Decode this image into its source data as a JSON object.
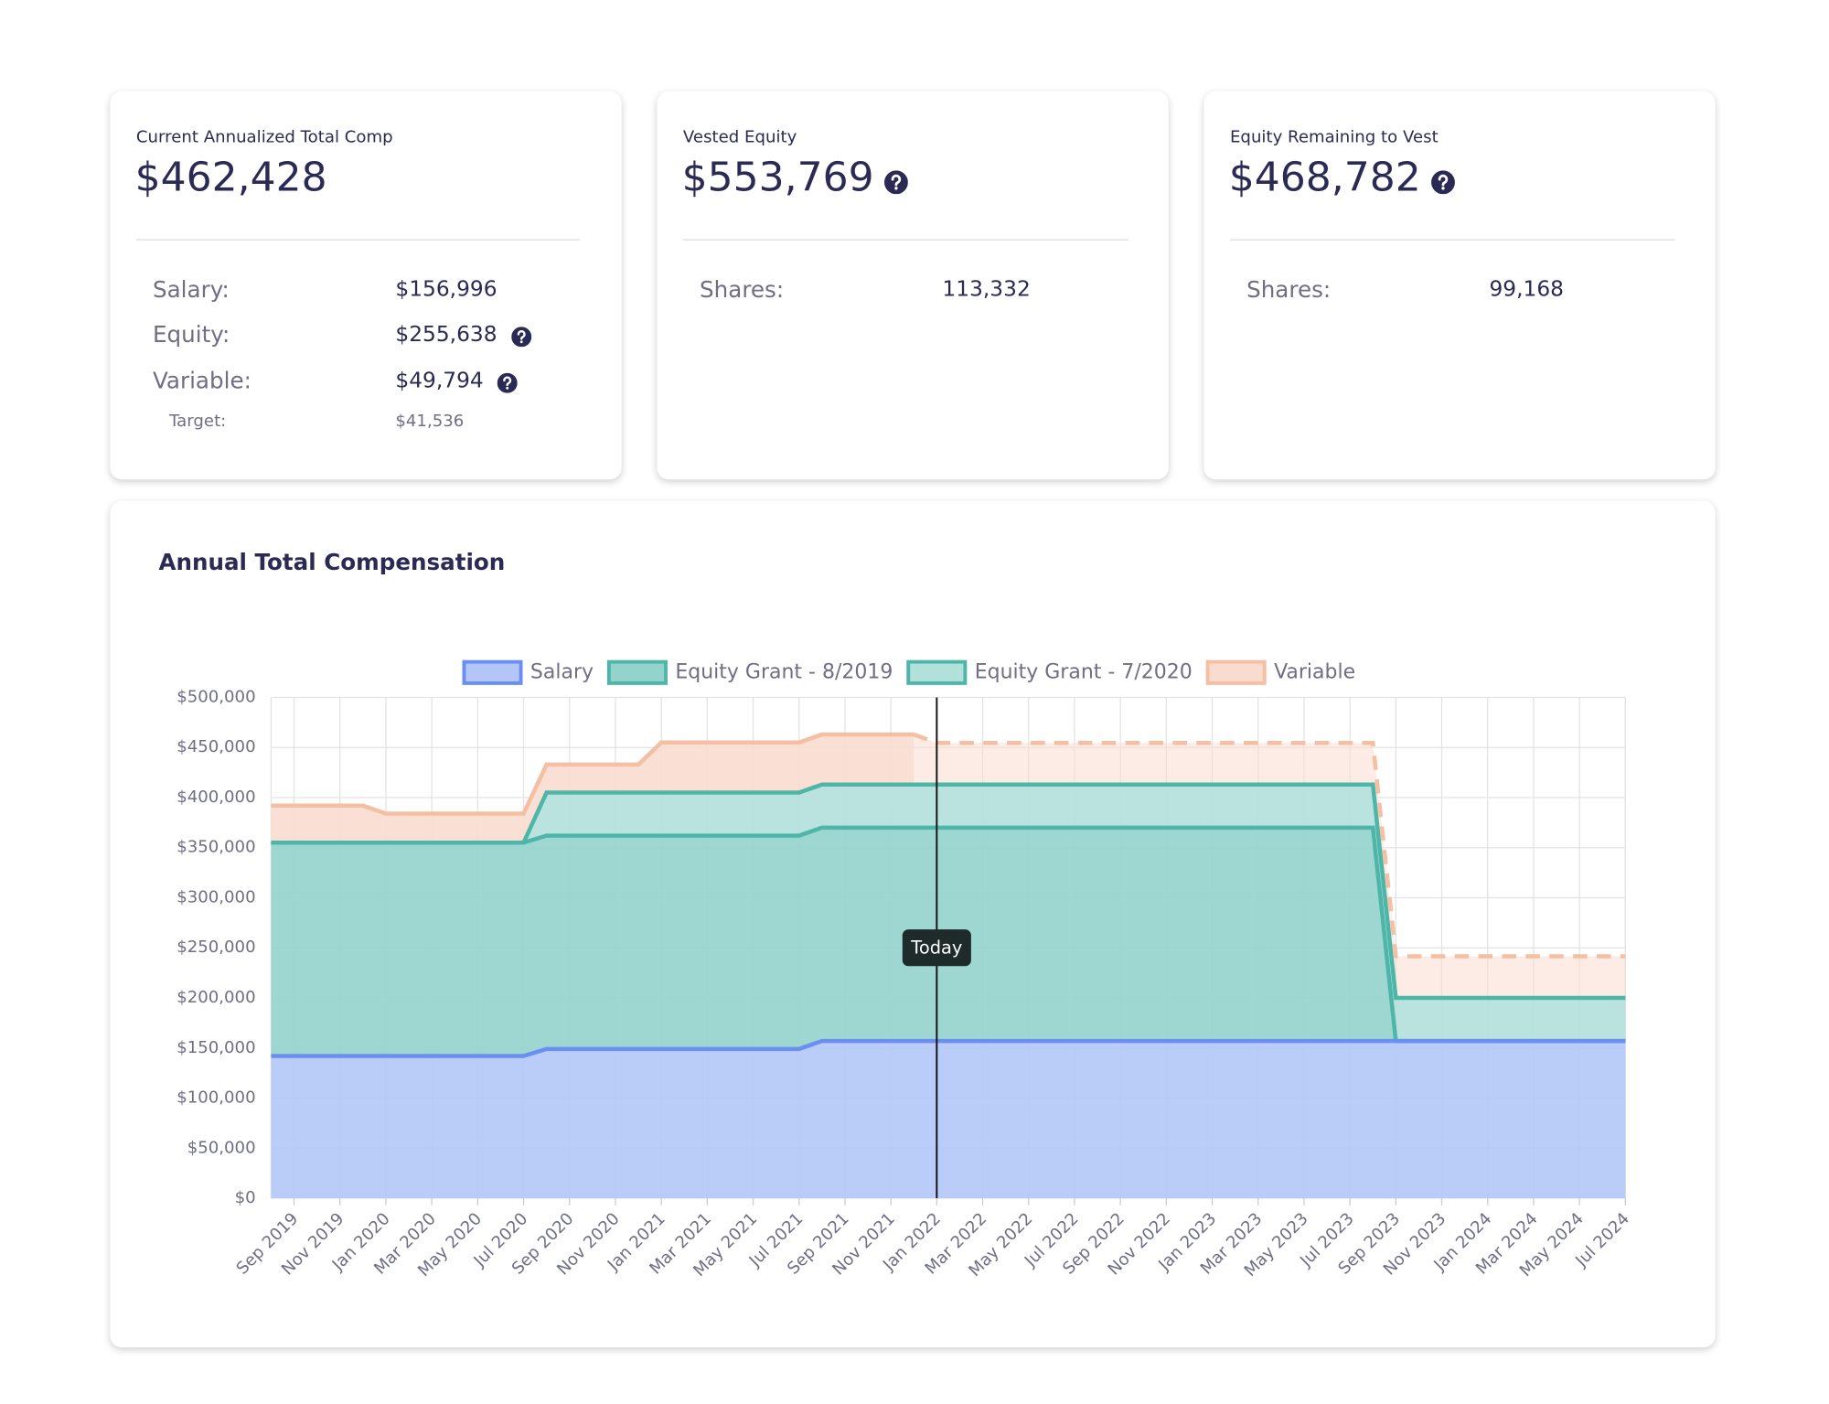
{
  "cards": [
    {
      "title": "Current Annualized Total Comp",
      "value": "$462,428",
      "rows": [
        {
          "label": "Salary:",
          "value": "$156,996"
        },
        {
          "label": "Equity:",
          "value": "$255,638",
          "help": true
        },
        {
          "label": "Variable:",
          "value": "$49,794",
          "help": true
        },
        {
          "label": "Target:",
          "value": "$41,536"
        }
      ]
    },
    {
      "title": "Vested Equity",
      "value": "$553,769",
      "help": true,
      "rows": [
        {
          "label": "Shares:",
          "value": "113,332"
        }
      ]
    },
    {
      "title": "Equity Remaining to Vest",
      "value": "$468,782",
      "help": true,
      "rows": [
        {
          "label": "Shares:",
          "value": "99,168"
        }
      ]
    }
  ],
  "chart_data": {
    "type": "stacked-area",
    "title": "Annual Total Compensation",
    "categories": [
      null,
      "Sep 2019",
      null,
      "Nov 2019",
      null,
      "Jan 2020",
      null,
      "Mar 2020",
      null,
      "May 2020",
      null,
      "Jul 2020",
      null,
      "Sep 2020",
      null,
      "Nov 2020",
      null,
      "Jan 2021",
      null,
      "Mar 2021",
      null,
      "May 2021",
      null,
      "Jul 2021",
      null,
      "Sep 2021",
      null,
      "Nov 2021",
      null,
      "Jan 2022",
      null,
      "Mar 2022",
      null,
      "May 2022",
      null,
      "Jul 2022",
      null,
      "Sep 2022",
      null,
      "Nov 2022",
      null,
      "Jan 2023",
      null,
      "Mar 2023",
      null,
      "May 2023",
      null,
      "Jul 2023",
      null,
      "Sep 2023",
      null,
      "Nov 2023",
      null,
      "Jan 2024",
      null,
      "Mar 2024",
      null,
      "May 2024",
      null,
      "Jul 2024"
    ],
    "series": [
      {
        "name": "Salary",
        "color": "#6b8ff0",
        "fill": "#b3c6f7",
        "values": [
          142000,
          142000,
          142000,
          142000,
          142000,
          142000,
          142000,
          142000,
          142000,
          142000,
          142000,
          142000,
          149000,
          149000,
          149000,
          149000,
          149000,
          149000,
          149000,
          149000,
          149000,
          149000,
          149000,
          149000,
          156996,
          156996,
          156996,
          156996,
          156996,
          156996,
          156996,
          156996,
          156996,
          156996,
          156996,
          156996,
          156996,
          156996,
          156996,
          156996,
          156996,
          156996,
          156996,
          156996,
          156996,
          156996,
          156996,
          156996,
          156996,
          156996,
          156996,
          156996,
          156996,
          156996,
          156996,
          156996,
          156996,
          156996,
          156996,
          156996
        ]
      },
      {
        "name": "Equity Grant - 8/2019",
        "color": "#4db6a8",
        "fill": "#93d3cc",
        "values": [
          213000,
          213000,
          213000,
          213000,
          213000,
          213000,
          213000,
          213000,
          213000,
          213000,
          213000,
          213000,
          213000,
          213000,
          213000,
          213000,
          213000,
          213000,
          213000,
          213000,
          213000,
          213000,
          213000,
          213000,
          213000,
          213000,
          213000,
          213000,
          213000,
          213000,
          213000,
          213000,
          213000,
          213000,
          213000,
          213000,
          213000,
          213000,
          213000,
          213000,
          213000,
          213000,
          213000,
          213000,
          213000,
          213000,
          213000,
          213000,
          213000,
          0,
          0,
          0,
          0,
          0,
          0,
          0,
          0,
          0,
          0,
          0
        ]
      },
      {
        "name": "Equity Grant - 7/2020",
        "color": "#4db6a8",
        "fill": "#b2e0db",
        "values": [
          0,
          0,
          0,
          0,
          0,
          0,
          0,
          0,
          0,
          0,
          0,
          0,
          43000,
          43000,
          43000,
          43000,
          43000,
          43000,
          43000,
          43000,
          43000,
          43000,
          43000,
          43000,
          43000,
          43000,
          43000,
          43000,
          43000,
          43000,
          43000,
          43000,
          43000,
          43000,
          43000,
          43000,
          43000,
          43000,
          43000,
          43000,
          43000,
          43000,
          43000,
          43000,
          43000,
          43000,
          43000,
          43000,
          43000,
          43000,
          43000,
          43000,
          43000,
          43000,
          43000,
          43000,
          43000,
          43000,
          43000,
          43000
        ]
      },
      {
        "name": "Variable",
        "color": "#f4bfa2",
        "fill": "#f9dccf",
        "projected_after_today": true,
        "values": [
          37000,
          37000,
          37000,
          37000,
          37000,
          29000,
          29000,
          29000,
          29000,
          29000,
          29000,
          29000,
          28000,
          28000,
          28000,
          28000,
          28000,
          50000,
          50000,
          50000,
          50000,
          50000,
          50000,
          50000,
          50000,
          50000,
          50000,
          50000,
          50000,
          41536,
          41536,
          41536,
          41536,
          41536,
          41536,
          41536,
          41536,
          41536,
          41536,
          41536,
          41536,
          41536,
          41536,
          41536,
          41536,
          41536,
          41536,
          41536,
          41536,
          41536,
          41536,
          41536,
          41536,
          41536,
          41536,
          41536,
          41536,
          41536,
          41536,
          41536
        ]
      }
    ],
    "ylim": [
      0,
      500000
    ],
    "yticks": [
      {
        "value": 0,
        "label": "$0"
      },
      {
        "value": 50000,
        "label": "$50,000"
      },
      {
        "value": 100000,
        "label": "$100,000"
      },
      {
        "value": 150000,
        "label": "$150,000"
      },
      {
        "value": 200000,
        "label": "$200,000"
      },
      {
        "value": 250000,
        "label": "$250,000"
      },
      {
        "value": 300000,
        "label": "$300,000"
      },
      {
        "value": 350000,
        "label": "$350,000"
      },
      {
        "value": 400000,
        "label": "$400,000"
      },
      {
        "value": 450000,
        "label": "$450,000"
      },
      {
        "value": 500000,
        "label": "$500,000"
      }
    ],
    "grid": true,
    "legend": "top",
    "today": {
      "label": "Today",
      "at": "Jan 2022"
    }
  }
}
